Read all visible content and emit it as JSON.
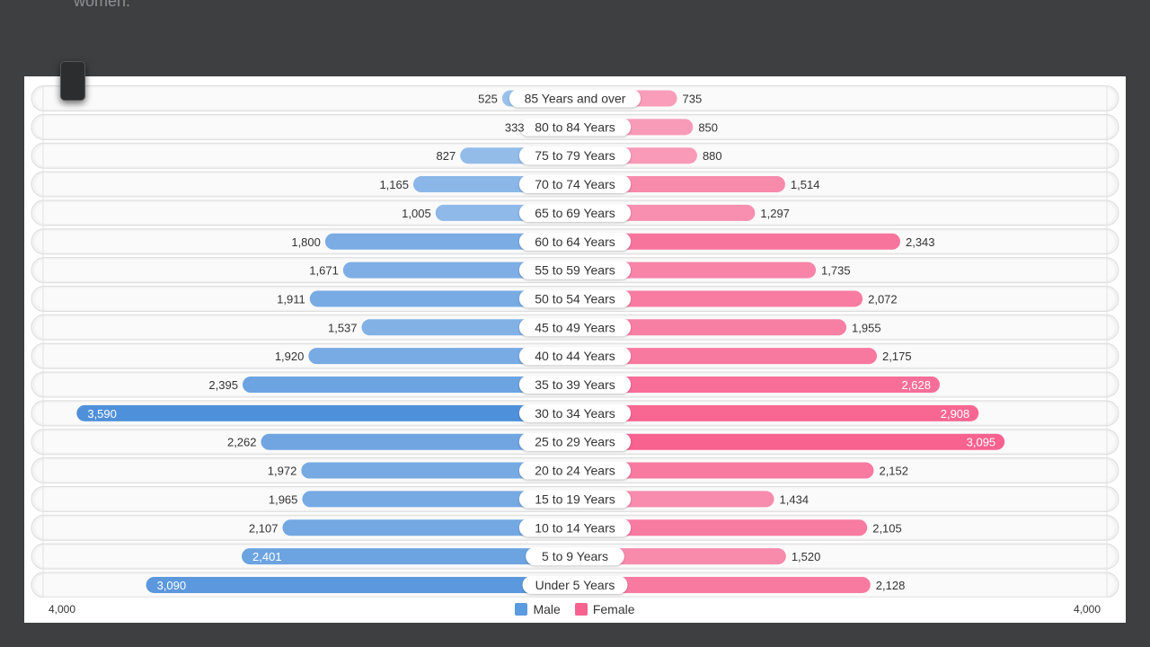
{
  "page": {
    "caption_fragment": "women."
  },
  "chart_data": {
    "type": "bar",
    "orientation": "horizontal-diverging",
    "categories": [
      "85 Years and over",
      "80 to 84 Years",
      "75 to 79 Years",
      "70 to 74 Years",
      "65 to 69 Years",
      "60 to 64 Years",
      "55 to 59 Years",
      "50 to 54 Years",
      "45 to 49 Years",
      "40 to 44 Years",
      "35 to 39 Years",
      "30 to 34 Years",
      "25 to 29 Years",
      "20 to 24 Years",
      "15 to 19 Years",
      "10 to 14 Years",
      "5 to 9 Years",
      "Under 5 Years"
    ],
    "series": [
      {
        "name": "Male",
        "values": [
          525,
          333,
          827,
          1165,
          1005,
          1800,
          1671,
          1911,
          1537,
          1920,
          2395,
          3590,
          2262,
          1972,
          1965,
          2107,
          2401,
          3090
        ],
        "labels": [
          "525",
          "333",
          "827",
          "1,165",
          "1,005",
          "1,800",
          "1,671",
          "1,911",
          "1,537",
          "1,920",
          "2,395",
          "3,590",
          "2,262",
          "1,972",
          "1,965",
          "2,107",
          "2,401",
          "3,090"
        ]
      },
      {
        "name": "Female",
        "values": [
          735,
          850,
          880,
          1514,
          1297,
          2343,
          1735,
          2072,
          1955,
          2175,
          2628,
          2908,
          3095,
          2152,
          1434,
          2105,
          1520,
          2128
        ],
        "labels": [
          "735",
          "850",
          "880",
          "1,514",
          "1,297",
          "2,343",
          "1,735",
          "2,072",
          "1,955",
          "2,175",
          "2,628",
          "2,908",
          "3,095",
          "2,152",
          "1,434",
          "2,105",
          "1,520",
          "2,128"
        ]
      }
    ],
    "axis": {
      "left_label": "4,000",
      "right_label": "4,000",
      "max": 4000
    },
    "legend": {
      "placement": "bottom",
      "male_label": "Male",
      "female_label": "Female"
    },
    "colors": {
      "male_light": "#a7c9ee",
      "male_dark": "#4f90da",
      "female_light": "#f9b0c8",
      "female_dark": "#f7628f"
    },
    "grid": false
  }
}
